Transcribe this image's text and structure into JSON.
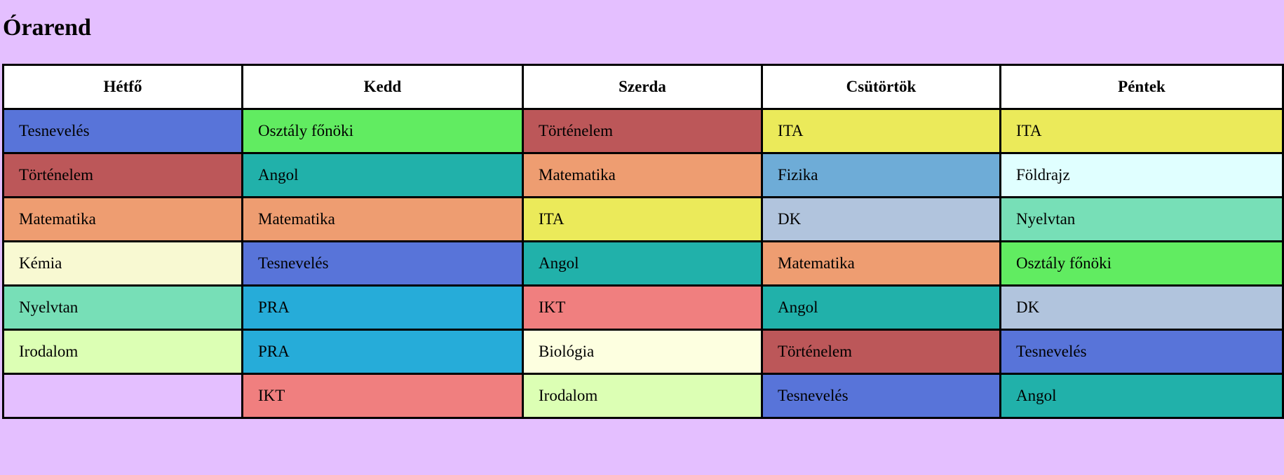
{
  "page": {
    "title": "Órarend",
    "background": "#e4bfff"
  },
  "timetable": {
    "days": [
      "Hétfő",
      "Kedd",
      "Szerda",
      "Csütörtök",
      "Péntek"
    ],
    "rows": [
      [
        {
          "subject": "Tesnevelés",
          "color": "#5874d9"
        },
        {
          "subject": "Osztály főnöki",
          "color": "#61ec61"
        },
        {
          "subject": "Történelem",
          "color": "#bc5759"
        },
        {
          "subject": "ITA",
          "color": "#ebea5a"
        },
        {
          "subject": "ITA",
          "color": "#ebea5a"
        }
      ],
      [
        {
          "subject": "Történelem",
          "color": "#bc5759"
        },
        {
          "subject": "Angol",
          "color": "#21b1aa"
        },
        {
          "subject": "Matematika",
          "color": "#ee9d71"
        },
        {
          "subject": "Fizika",
          "color": "#6eacd7"
        },
        {
          "subject": "Földrajz",
          "color": "#e0ffff"
        }
      ],
      [
        {
          "subject": "Matematika",
          "color": "#ee9d71"
        },
        {
          "subject": "Matematika",
          "color": "#ee9d71"
        },
        {
          "subject": "ITA",
          "color": "#ebea5a"
        },
        {
          "subject": "DK",
          "color": "#b1c4dd"
        },
        {
          "subject": "Nyelvtan",
          "color": "#77dfb7"
        }
      ],
      [
        {
          "subject": "Kémia",
          "color": "#f8f9d2"
        },
        {
          "subject": "Tesnevelés",
          "color": "#5874d9"
        },
        {
          "subject": "Angol",
          "color": "#21b1aa"
        },
        {
          "subject": "Matematika",
          "color": "#ee9d71"
        },
        {
          "subject": "Osztály főnöki",
          "color": "#61ec61"
        }
      ],
      [
        {
          "subject": "Nyelvtan",
          "color": "#77dfb7"
        },
        {
          "subject": "PRA",
          "color": "#26acd9"
        },
        {
          "subject": "IKT",
          "color": "#f07f7f"
        },
        {
          "subject": "Angol",
          "color": "#21b1aa"
        },
        {
          "subject": "DK",
          "color": "#b1c4dd"
        }
      ],
      [
        {
          "subject": "Irodalom",
          "color": "#dcffb4"
        },
        {
          "subject": "PRA",
          "color": "#26acd9"
        },
        {
          "subject": "Biológia",
          "color": "#fdffe0"
        },
        {
          "subject": "Történelem",
          "color": "#bc5759"
        },
        {
          "subject": "Tesnevelés",
          "color": "#5874d9"
        }
      ],
      [
        {
          "subject": "",
          "color": "#e4bfff"
        },
        {
          "subject": "IKT",
          "color": "#f07f7f"
        },
        {
          "subject": "Irodalom",
          "color": "#dcffb4"
        },
        {
          "subject": "Tesnevelés",
          "color": "#5874d9"
        },
        {
          "subject": "Angol",
          "color": "#21b1aa"
        }
      ]
    ]
  }
}
